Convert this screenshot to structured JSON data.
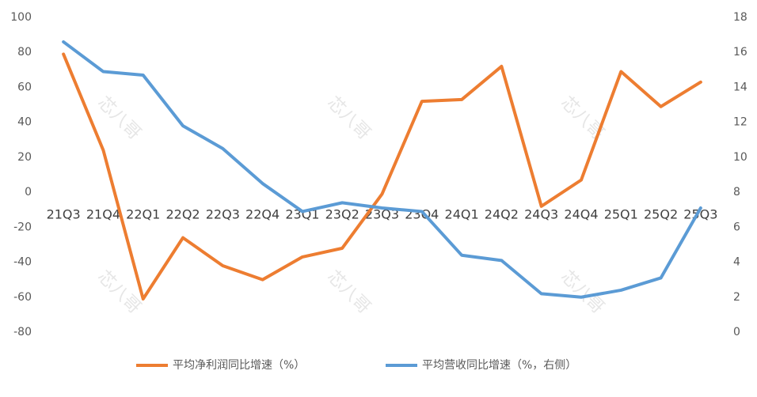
{
  "chart_data": {
    "type": "line",
    "categories": [
      "21Q3",
      "21Q4",
      "22Q1",
      "22Q2",
      "22Q3",
      "22Q4",
      "23Q1",
      "23Q2",
      "23Q3",
      "23Q4",
      "24Q1",
      "24Q2",
      "24Q3",
      "24Q4",
      "25Q1",
      "25Q2",
      "25Q3"
    ],
    "series": [
      {
        "name": "平均净利润同比增速（%）",
        "color": "#ed7d31",
        "values": [
          79,
          24,
          -61,
          -26,
          -42,
          -50,
          -37,
          -32,
          -1,
          52,
          53,
          72,
          -8,
          7,
          69,
          49,
          63
        ]
      },
      {
        "name": "平均营收同比增速（%，右侧）",
        "color": "#5b9bd5",
        "axis": "y2",
        "values": [
          16.6,
          14.9,
          14.7,
          11.8,
          10.5,
          8.5,
          6.9,
          7.4,
          7.1,
          6.9,
          4.4,
          4.1,
          2.2,
          2.0,
          2.4,
          3.1,
          7.1
        ]
      }
    ],
    "ylim": [
      -80,
      100
    ],
    "yticks": [
      -80,
      -60,
      -40,
      -20,
      0,
      20,
      40,
      60,
      80,
      100
    ],
    "y2lim": [
      0,
      18
    ],
    "y2ticks": [
      0,
      2,
      4,
      6,
      8,
      10,
      12,
      14,
      16,
      18
    ],
    "grid": false,
    "legend": "bottom",
    "watermark": "芯八哥"
  }
}
